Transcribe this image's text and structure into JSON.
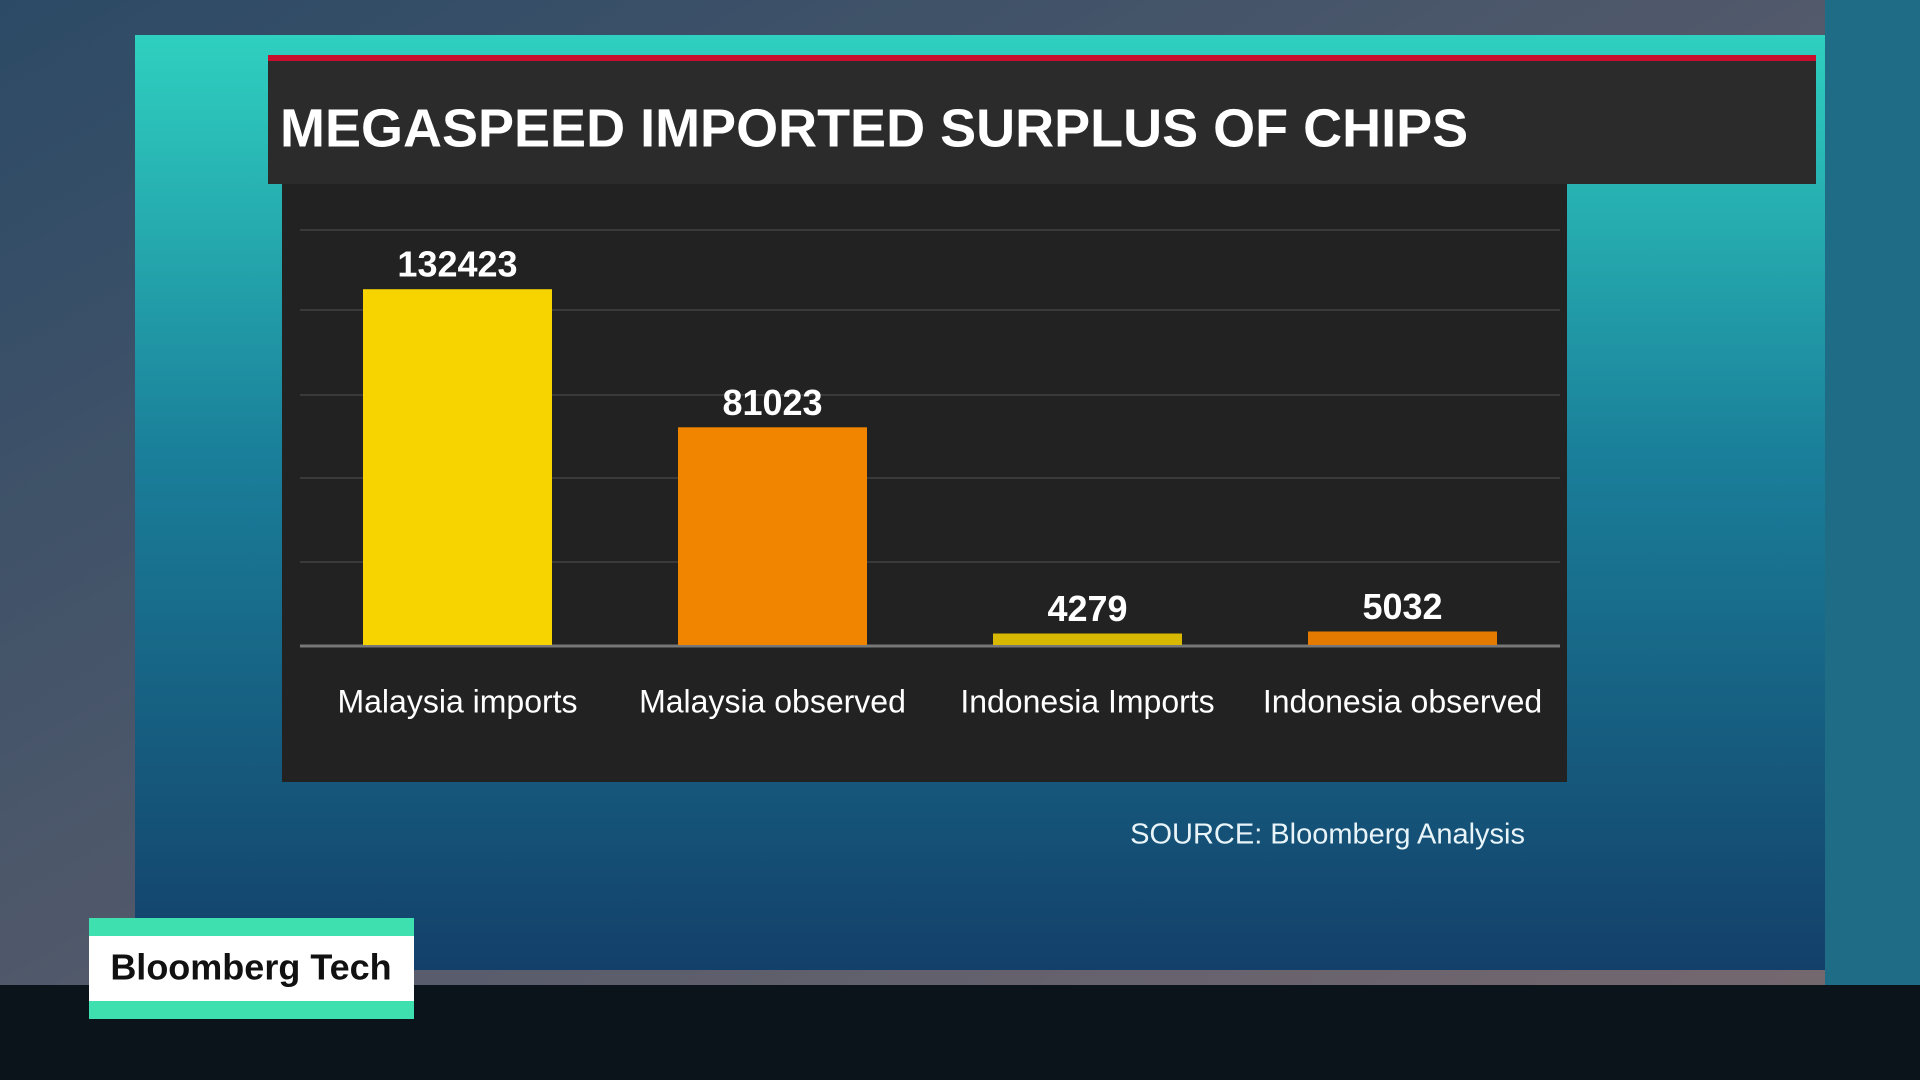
{
  "chart_data": {
    "type": "bar",
    "title": "MEGASPEED IMPORTED SURPLUS OF CHIPS",
    "categories": [
      "Malaysia imports",
      "Malaysia observed",
      "Indonesia Imports",
      "Indonesia observed"
    ],
    "values": [
      132423,
      81023,
      4279,
      5032
    ],
    "colors": [
      "#f7d400",
      "#f28500",
      "#d8b800",
      "#e47a00"
    ],
    "ylim": [
      0,
      150000
    ],
    "source": "SOURCE: Bloomberg Analysis"
  },
  "branding": {
    "show": "Bloomberg Tech"
  }
}
